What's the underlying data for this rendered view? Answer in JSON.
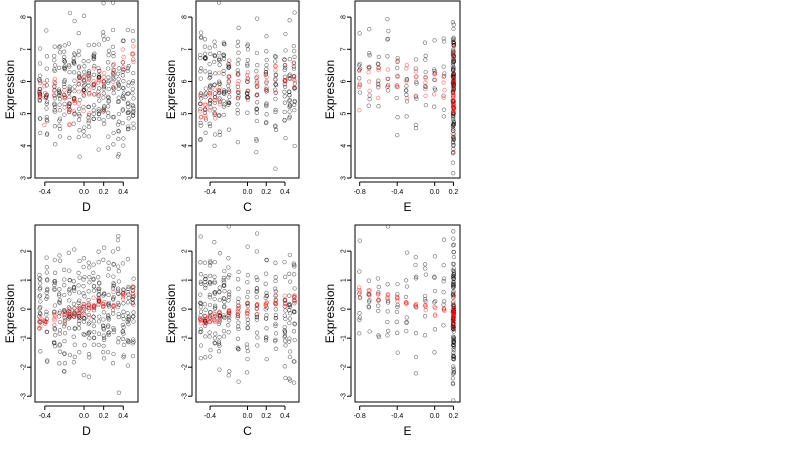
{
  "colors": {
    "observed": "#000000",
    "fitted": "#ff0000",
    "background": "#ffffff"
  },
  "chart_data": [
    {
      "type": "scatter",
      "panel": "top-left",
      "xlabel": "D",
      "ylabel": "Expression",
      "xlim": [
        -0.5,
        0.55
      ],
      "ylim": [
        3,
        8.5
      ],
      "xticks": [
        -0.4,
        0.0,
        0.2,
        0.4
      ],
      "xtick_labels": [
        "-0.4",
        "0.0",
        "0.2",
        "0.4"
      ],
      "yticks": [
        3,
        4,
        5,
        6,
        7,
        8
      ],
      "ytick_labels": [
        "3",
        "4",
        "5",
        "6",
        "7",
        "8"
      ],
      "point_clusters": [
        {
          "series": "observed",
          "x": [
            -0.45,
            -0.38,
            -0.3,
            -0.25,
            -0.2,
            -0.15,
            -0.1,
            -0.05,
            0.0,
            0.05,
            0.1,
            0.15,
            0.2,
            0.25,
            0.3,
            0.35,
            0.4,
            0.45,
            0.5
          ],
          "y_center": 5.8,
          "y_spread": 1.1,
          "n": 18
        },
        {
          "series": "fitted",
          "x": [
            -0.45,
            -0.4,
            -0.3,
            -0.2,
            -0.15,
            -0.1,
            -0.05,
            0.0,
            0.05,
            0.1,
            0.15,
            0.2,
            0.3,
            0.4,
            0.5
          ],
          "y": [
            5.7,
            5.6,
            5.8,
            5.5,
            5.2,
            5.6,
            5.8,
            5.7,
            5.6,
            6.0,
            6.1,
            6.0,
            6.2,
            6.5,
            6.7
          ],
          "y_spread": 0.35,
          "n": 5
        }
      ]
    },
    {
      "type": "scatter",
      "panel": "top-middle",
      "xlabel": "C",
      "ylabel": "Expression",
      "xlim": [
        -0.55,
        0.55
      ],
      "ylim": [
        3,
        8.5
      ],
      "xticks": [
        -0.4,
        0.0,
        0.2,
        0.4
      ],
      "xtick_labels": [
        "-0.4",
        "0.0",
        "0.2",
        "0.4"
      ],
      "yticks": [
        3,
        4,
        5,
        6,
        7,
        8
      ],
      "ytick_labels": [
        "3",
        "4",
        "5",
        "6",
        "7",
        "8"
      ],
      "point_clusters": [
        {
          "series": "observed",
          "x": [
            -0.5,
            -0.45,
            -0.4,
            -0.35,
            -0.3,
            -0.25,
            -0.2,
            -0.1,
            0.0,
            0.1,
            0.2,
            0.3,
            0.4,
            0.45,
            0.5
          ],
          "y_center": 5.8,
          "y_spread": 1.1,
          "n": 18
        },
        {
          "series": "fitted",
          "x": [
            -0.5,
            -0.45,
            -0.4,
            -0.35,
            -0.3,
            -0.2,
            -0.1,
            0.0,
            0.1,
            0.2,
            0.3,
            0.4,
            0.5
          ],
          "y": [
            5.1,
            5.3,
            5.4,
            5.5,
            5.6,
            5.8,
            5.7,
            5.9,
            5.8,
            5.9,
            6.0,
            6.1,
            6.0
          ],
          "y_spread": 0.35,
          "n": 5
        }
      ]
    },
    {
      "type": "scatter",
      "panel": "top-right",
      "xlabel": "E",
      "ylabel": "Expression",
      "xlim": [
        -0.85,
        0.27
      ],
      "ylim": [
        3,
        8.5
      ],
      "xticks": [
        -0.8,
        -0.4,
        0.0,
        0.2
      ],
      "xtick_labels": [
        "-0.8",
        "-0.4",
        "0.0",
        "0.2"
      ],
      "yticks": [
        3,
        4,
        5,
        6,
        7,
        8
      ],
      "ytick_labels": [
        "3",
        "4",
        "5",
        "6",
        "7",
        "8"
      ],
      "point_clusters": [
        {
          "series": "observed",
          "x": [
            -0.8,
            -0.7,
            -0.6,
            -0.5,
            -0.4,
            -0.3,
            -0.2,
            -0.1,
            0.0,
            0.1
          ],
          "y_center": 6.0,
          "y_spread": 1.0,
          "n": 8
        },
        {
          "series": "observed",
          "x": [
            0.2
          ],
          "y_center": 5.7,
          "y_spread": 1.5,
          "n": 110
        },
        {
          "series": "fitted",
          "x": [
            -0.8,
            -0.7,
            -0.6,
            -0.5,
            -0.4,
            -0.3,
            -0.2,
            -0.1,
            0.0,
            0.1
          ],
          "y": [
            5.9,
            6.0,
            6.1,
            6.2,
            6.3,
            6.1,
            6.0,
            5.9,
            5.8,
            5.8
          ],
          "y_spread": 0.4,
          "n": 4
        },
        {
          "series": "fitted",
          "x": [
            0.2
          ],
          "y_center": 5.6,
          "y_spread": 0.8,
          "n": 40
        }
      ]
    },
    {
      "type": "scatter",
      "panel": "bottom-left",
      "xlabel": "D",
      "ylabel": "Expression",
      "xlim": [
        -0.5,
        0.55
      ],
      "ylim": [
        -3.2,
        2.9
      ],
      "xticks": [
        -0.4,
        0.0,
        0.2,
        0.4
      ],
      "xtick_labels": [
        "-0.4",
        "0.0",
        "0.2",
        "0.4"
      ],
      "yticks": [
        -3,
        -2,
        -1,
        0,
        1,
        2
      ],
      "ytick_labels": [
        "-3",
        "-2",
        "-1",
        "0",
        "1",
        "2"
      ],
      "point_clusters": [
        {
          "series": "observed",
          "x": [
            -0.45,
            -0.38,
            -0.3,
            -0.25,
            -0.2,
            -0.15,
            -0.1,
            -0.05,
            0.0,
            0.05,
            0.1,
            0.15,
            0.2,
            0.25,
            0.3,
            0.35,
            0.4,
            0.45,
            0.5
          ],
          "y_center": 0.0,
          "y_spread": 1.2,
          "n": 18
        },
        {
          "series": "fitted",
          "x": [
            -0.45,
            -0.4,
            -0.3,
            -0.2,
            -0.15,
            -0.1,
            -0.05,
            0.0,
            0.05,
            0.1,
            0.15,
            0.2,
            0.3,
            0.4,
            0.5
          ],
          "y": [
            -0.5,
            -0.4,
            -0.3,
            -0.2,
            -0.15,
            -0.1,
            -0.05,
            0.0,
            0.05,
            0.1,
            0.15,
            0.2,
            0.3,
            0.45,
            0.6
          ],
          "y_spread": 0.15,
          "n": 5
        }
      ]
    },
    {
      "type": "scatter",
      "panel": "bottom-middle",
      "xlabel": "C",
      "ylabel": "Expression",
      "xlim": [
        -0.55,
        0.55
      ],
      "ylim": [
        -3.2,
        2.9
      ],
      "xticks": [
        -0.4,
        0.0,
        0.2,
        0.4
      ],
      "xtick_labels": [
        "-0.4",
        "0.0",
        "0.2",
        "0.4"
      ],
      "yticks": [
        -3,
        -2,
        -1,
        0,
        1,
        2
      ],
      "ytick_labels": [
        "-3",
        "-2",
        "-1",
        "0",
        "1",
        "2"
      ],
      "point_clusters": [
        {
          "series": "observed",
          "x": [
            -0.5,
            -0.45,
            -0.4,
            -0.35,
            -0.3,
            -0.25,
            -0.2,
            -0.1,
            0.0,
            0.1,
            0.2,
            0.3,
            0.4,
            0.45,
            0.5
          ],
          "y_center": 0.0,
          "y_spread": 1.2,
          "n": 18
        },
        {
          "series": "fitted",
          "x": [
            -0.5,
            -0.45,
            -0.4,
            -0.35,
            -0.3,
            -0.2,
            -0.1,
            0.0,
            0.1,
            0.2,
            0.3,
            0.4,
            0.5
          ],
          "y": [
            -0.35,
            -0.3,
            -0.28,
            -0.25,
            -0.2,
            -0.15,
            -0.05,
            0.0,
            0.1,
            0.15,
            0.25,
            0.35,
            0.45
          ],
          "y_spread": 0.15,
          "n": 5
        }
      ]
    },
    {
      "type": "scatter",
      "panel": "bottom-right",
      "xlabel": "E",
      "ylabel": "Expression",
      "xlim": [
        -0.85,
        0.27
      ],
      "ylim": [
        -3.2,
        2.9
      ],
      "xticks": [
        -0.8,
        -0.4,
        0.0,
        0.2
      ],
      "xtick_labels": [
        "-0.8",
        "-0.4",
        "0.0",
        "0.2"
      ],
      "yticks": [
        -3,
        -2,
        -1,
        0,
        1,
        2
      ],
      "ytick_labels": [
        "-3",
        "-2",
        "-1",
        "0",
        "1",
        "2"
      ],
      "point_clusters": [
        {
          "series": "observed",
          "x": [
            -0.8,
            -0.7,
            -0.6,
            -0.5,
            -0.4,
            -0.3,
            -0.2,
            -0.1,
            0.0,
            0.1
          ],
          "y_center": 0.3,
          "y_spread": 1.0,
          "n": 8
        },
        {
          "series": "observed",
          "x": [
            0.2
          ],
          "y_center": -0.2,
          "y_spread": 1.6,
          "n": 110
        },
        {
          "series": "fitted",
          "x": [
            -0.8,
            -0.7,
            -0.6,
            -0.5,
            -0.4,
            -0.3,
            -0.2,
            -0.1,
            0.0,
            0.1
          ],
          "y": [
            0.6,
            0.55,
            0.5,
            0.4,
            0.3,
            0.2,
            0.1,
            0.0,
            -0.05,
            -0.1
          ],
          "y_spread": 0.1,
          "n": 4
        },
        {
          "series": "fitted",
          "x": [
            0.2
          ],
          "y_center": -0.2,
          "y_spread": 0.3,
          "n": 30
        }
      ]
    }
  ]
}
